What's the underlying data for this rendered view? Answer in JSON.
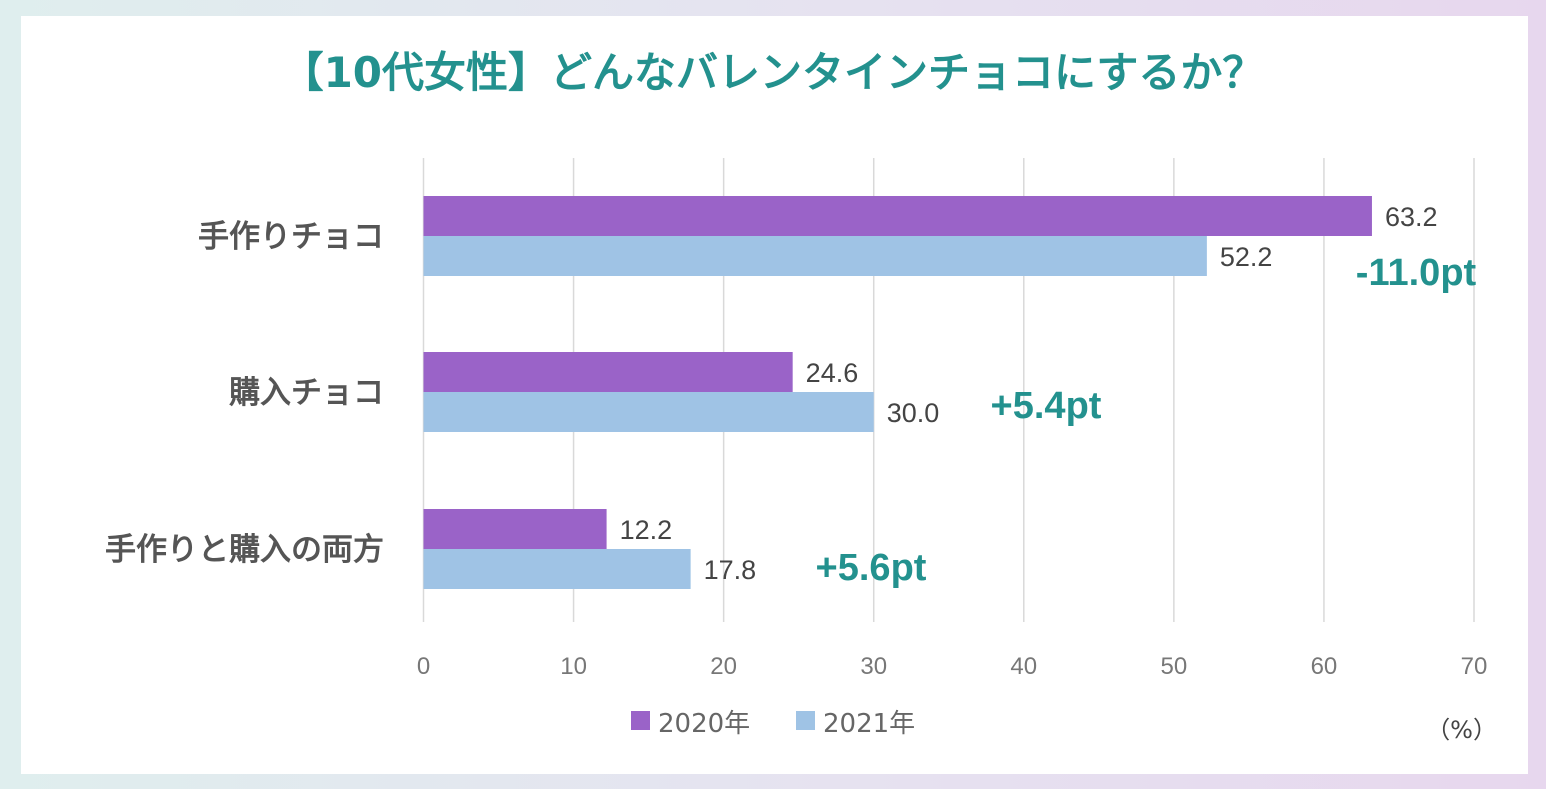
{
  "colors": {
    "accent": "#23918e",
    "series_2020": "#9a63c8",
    "series_2021": "#9fc3e5",
    "gridline": "#d9d9d9"
  },
  "chart_data": {
    "type": "bar",
    "orientation": "horizontal",
    "title": "【10代女性】どんなバレンタインチョコにするか？",
    "categories": [
      "手作りチョコ",
      "購入チョコ",
      "手作りと購入の両方"
    ],
    "series": [
      {
        "name": "2020年",
        "color": "#9a63c8",
        "values": [
          63.2,
          24.6,
          12.2
        ],
        "labels": [
          "63.2",
          "24.6",
          "12.2"
        ]
      },
      {
        "name": "2021年",
        "color": "#9fc3e5",
        "values": [
          52.2,
          30.0,
          17.8
        ],
        "labels": [
          "52.2",
          "30.0",
          "17.8"
        ]
      }
    ],
    "annotations": [
      "-11.0pt",
      "+5.4pt",
      "+5.6pt"
    ],
    "xlim": [
      0,
      70
    ],
    "ticks": [
      0,
      10,
      20,
      30,
      40,
      50,
      60,
      70
    ],
    "unit": "（%）",
    "grid": true,
    "legend_position": "bottom"
  }
}
